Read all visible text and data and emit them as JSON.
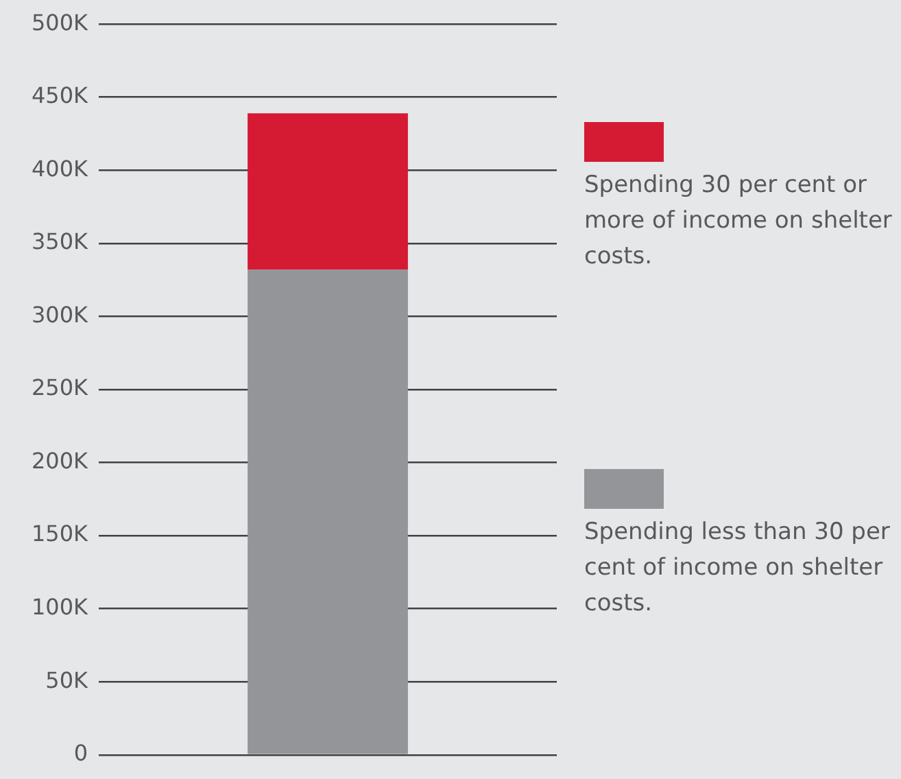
{
  "chart_data": {
    "type": "bar",
    "stacked": true,
    "categories": [
      null
    ],
    "series": [
      {
        "name": "Spending less than 30 per cent of income on shelter costs.",
        "color": "#939598",
        "values": [
          332000
        ]
      },
      {
        "name": "Spending 30 per cent or more of income on shelter costs.",
        "color": "#d51a33",
        "values": [
          107000
        ]
      }
    ],
    "ylim": [
      0,
      500000
    ],
    "yticks": [
      {
        "value": 0,
        "label": "0"
      },
      {
        "value": 50000,
        "label": "50K"
      },
      {
        "value": 100000,
        "label": "100K"
      },
      {
        "value": 150000,
        "label": "150K"
      },
      {
        "value": 200000,
        "label": "200K"
      },
      {
        "value": 250000,
        "label": "250K"
      },
      {
        "value": 300000,
        "label": "300K"
      },
      {
        "value": 350000,
        "label": "350K"
      },
      {
        "value": 400000,
        "label": "400K"
      },
      {
        "value": 450000,
        "label": "450K"
      },
      {
        "value": 500000,
        "label": "500K"
      }
    ],
    "grid": "y",
    "legend": "right",
    "tick_labels": "y"
  }
}
